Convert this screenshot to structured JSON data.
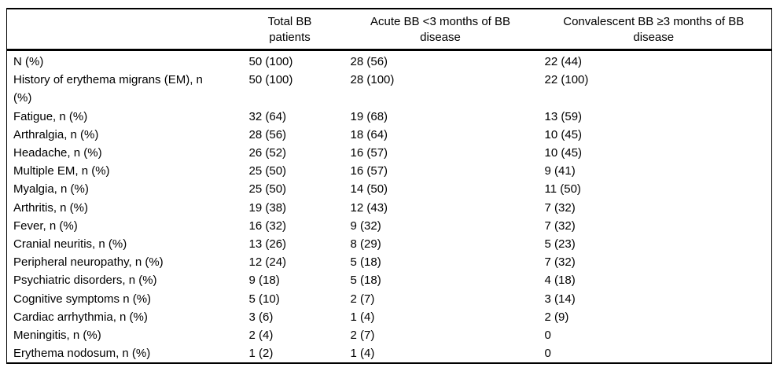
{
  "table": {
    "columns": [
      {
        "label": ""
      },
      {
        "label": "Total BB\npatients"
      },
      {
        "label": "Acute BB <3 months of BB\ndisease"
      },
      {
        "label": "Convalescent BB ≥3 months of BB\ndisease"
      }
    ],
    "rows": [
      {
        "label": "N (%)",
        "total": "50 (100)",
        "acute": "28 (56)",
        "convalescent": "22 (44)"
      },
      {
        "label": "History of erythema migrans (EM), n\n(%)",
        "total": "50 (100)",
        "acute": "28 (100)",
        "convalescent": "22 (100)"
      },
      {
        "label": "Fatigue, n (%)",
        "total": "32 (64)",
        "acute": "19 (68)",
        "convalescent": "13 (59)"
      },
      {
        "label": "Arthralgia, n (%)",
        "total": "28 (56)",
        "acute": "18 (64)",
        "convalescent": "10 (45)"
      },
      {
        "label": "Headache, n (%)",
        "total": "26 (52)",
        "acute": "16 (57)",
        "convalescent": "10 (45)"
      },
      {
        "label": "Multiple EM, n (%)",
        "total": "25 (50)",
        "acute": "16 (57)",
        "convalescent": "9 (41)"
      },
      {
        "label": "Myalgia, n (%)",
        "total": "25 (50)",
        "acute": "14 (50)",
        "convalescent": "11 (50)"
      },
      {
        "label": "Arthritis, n (%)",
        "total": "19 (38)",
        "acute": "12 (43)",
        "convalescent": "7 (32)"
      },
      {
        "label": "Fever, n (%)",
        "total": "16 (32)",
        "acute": "9 (32)",
        "convalescent": "7 (32)"
      },
      {
        "label": "Cranial neuritis, n (%)",
        "total": "13 (26)",
        "acute": "8 (29)",
        "convalescent": "5 (23)"
      },
      {
        "label": "Peripheral neuropathy, n (%)",
        "total": "12 (24)",
        "acute": "5 (18)",
        "convalescent": "7 (32)"
      },
      {
        "label": "Psychiatric disorders, n (%)",
        "total": "9 (18)",
        "acute": "5 (18)",
        "convalescent": "4 (18)"
      },
      {
        "label": "Cognitive symptoms n (%)",
        "total": "5 (10)",
        "acute": "2 (7)",
        "convalescent": "3 (14)"
      },
      {
        "label": "Cardiac arrhythmia, n (%)",
        "total": "3 (6)",
        "acute": "1 (4)",
        "convalescent": "2 (9)"
      },
      {
        "label": "Meningitis, n (%)",
        "total": "2 (4)",
        "acute": "2 (7)",
        "convalescent": "0"
      },
      {
        "label": "Erythema nodosum, n (%)",
        "total": "1 (2)",
        "acute": "1 (4)",
        "convalescent": "0"
      }
    ]
  },
  "colors": {
    "text": "#000000",
    "border": "#000000",
    "background": "#ffffff"
  }
}
